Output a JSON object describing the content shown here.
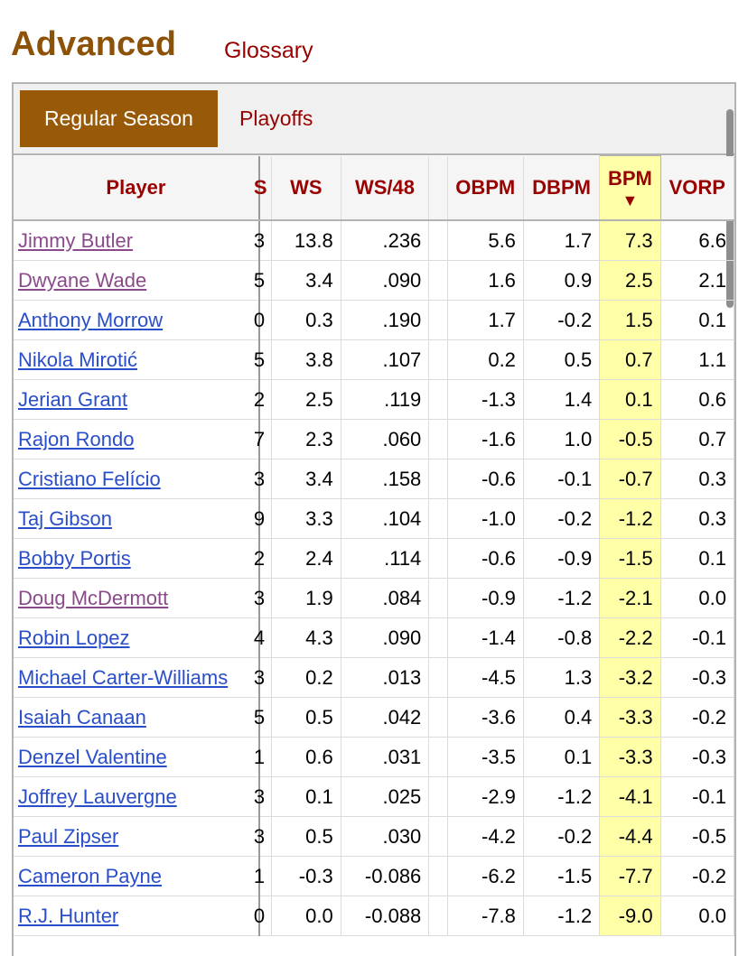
{
  "header": {
    "title": "Advanced",
    "glossary_label": "Glossary"
  },
  "tabs": [
    {
      "label": "Regular Season",
      "active": true
    },
    {
      "label": "Playoffs",
      "active": false
    }
  ],
  "table": {
    "columns": [
      {
        "key": "player",
        "label": "Player"
      },
      {
        "key": "cut",
        "label": "S"
      },
      {
        "key": "ws",
        "label": "WS"
      },
      {
        "key": "ws48",
        "label": "WS/48"
      },
      {
        "key": "spacer",
        "label": ""
      },
      {
        "key": "obpm",
        "label": "OBPM"
      },
      {
        "key": "dbpm",
        "label": "DBPM"
      },
      {
        "key": "bpm",
        "label": "BPM",
        "sort_indicator": "▼"
      },
      {
        "key": "vorp",
        "label": "VORP"
      }
    ],
    "rows": [
      {
        "player": "Jimmy Butler",
        "visited": true,
        "cut": "3",
        "ws": "13.8",
        "ws48": ".236",
        "obpm": "5.6",
        "dbpm": "1.7",
        "bpm": "7.3",
        "vorp": "6.6"
      },
      {
        "player": "Dwyane Wade",
        "visited": true,
        "cut": "5",
        "ws": "3.4",
        "ws48": ".090",
        "obpm": "1.6",
        "dbpm": "0.9",
        "bpm": "2.5",
        "vorp": "2.1"
      },
      {
        "player": "Anthony Morrow",
        "visited": false,
        "cut": "0",
        "ws": "0.3",
        "ws48": ".190",
        "obpm": "1.7",
        "dbpm": "-0.2",
        "bpm": "1.5",
        "vorp": "0.1"
      },
      {
        "player": "Nikola Mirotić",
        "visited": false,
        "cut": "5",
        "ws": "3.8",
        "ws48": ".107",
        "obpm": "0.2",
        "dbpm": "0.5",
        "bpm": "0.7",
        "vorp": "1.1"
      },
      {
        "player": "Jerian Grant",
        "visited": false,
        "cut": "2",
        "ws": "2.5",
        "ws48": ".119",
        "obpm": "-1.3",
        "dbpm": "1.4",
        "bpm": "0.1",
        "vorp": "0.6"
      },
      {
        "player": "Rajon Rondo",
        "visited": false,
        "cut": "7",
        "ws": "2.3",
        "ws48": ".060",
        "obpm": "-1.6",
        "dbpm": "1.0",
        "bpm": "-0.5",
        "vorp": "0.7"
      },
      {
        "player": "Cristiano Felício",
        "visited": false,
        "cut": "3",
        "ws": "3.4",
        "ws48": ".158",
        "obpm": "-0.6",
        "dbpm": "-0.1",
        "bpm": "-0.7",
        "vorp": "0.3"
      },
      {
        "player": "Taj Gibson",
        "visited": false,
        "cut": "9",
        "ws": "3.3",
        "ws48": ".104",
        "obpm": "-1.0",
        "dbpm": "-0.2",
        "bpm": "-1.2",
        "vorp": "0.3"
      },
      {
        "player": "Bobby Portis",
        "visited": false,
        "cut": "2",
        "ws": "2.4",
        "ws48": ".114",
        "obpm": "-0.6",
        "dbpm": "-0.9",
        "bpm": "-1.5",
        "vorp": "0.1"
      },
      {
        "player": "Doug McDermott",
        "visited": true,
        "cut": "3",
        "ws": "1.9",
        "ws48": ".084",
        "obpm": "-0.9",
        "dbpm": "-1.2",
        "bpm": "-2.1",
        "vorp": "0.0"
      },
      {
        "player": "Robin Lopez",
        "visited": false,
        "cut": "4",
        "ws": "4.3",
        "ws48": ".090",
        "obpm": "-1.4",
        "dbpm": "-0.8",
        "bpm": "-2.2",
        "vorp": "-0.1"
      },
      {
        "player": "Michael Carter-Williams",
        "visited": false,
        "cut": "3",
        "ws": "0.2",
        "ws48": ".013",
        "obpm": "-4.5",
        "dbpm": "1.3",
        "bpm": "-3.2",
        "vorp": "-0.3"
      },
      {
        "player": "Isaiah Canaan",
        "visited": false,
        "cut": "5",
        "ws": "0.5",
        "ws48": ".042",
        "obpm": "-3.6",
        "dbpm": "0.4",
        "bpm": "-3.3",
        "vorp": "-0.2"
      },
      {
        "player": "Denzel Valentine",
        "visited": false,
        "cut": "1",
        "ws": "0.6",
        "ws48": ".031",
        "obpm": "-3.5",
        "dbpm": "0.1",
        "bpm": "-3.3",
        "vorp": "-0.3"
      },
      {
        "player": "Joffrey Lauvergne",
        "visited": false,
        "cut": "3",
        "ws": "0.1",
        "ws48": ".025",
        "obpm": "-2.9",
        "dbpm": "-1.2",
        "bpm": "-4.1",
        "vorp": "-0.1"
      },
      {
        "player": "Paul Zipser",
        "visited": false,
        "cut": "3",
        "ws": "0.5",
        "ws48": ".030",
        "obpm": "-4.2",
        "dbpm": "-0.2",
        "bpm": "-4.4",
        "vorp": "-0.5"
      },
      {
        "player": "Cameron Payne",
        "visited": false,
        "cut": "1",
        "ws": "-0.3",
        "ws48": "-0.086",
        "obpm": "-6.2",
        "dbpm": "-1.5",
        "bpm": "-7.7",
        "vorp": "-0.2"
      },
      {
        "player": "R.J. Hunter",
        "visited": false,
        "cut": "0",
        "ws": "0.0",
        "ws48": "-0.088",
        "obpm": "-7.8",
        "dbpm": "-1.2",
        "bpm": "-9.0",
        "vorp": "0.0"
      }
    ]
  },
  "colors": {
    "title": "#8c5207",
    "link_red": "#990000",
    "active_tab": "#985a08",
    "player_link": "#2a4ec9",
    "visited_link": "#8a4a8a",
    "sorted_column": "#ffffa8"
  }
}
